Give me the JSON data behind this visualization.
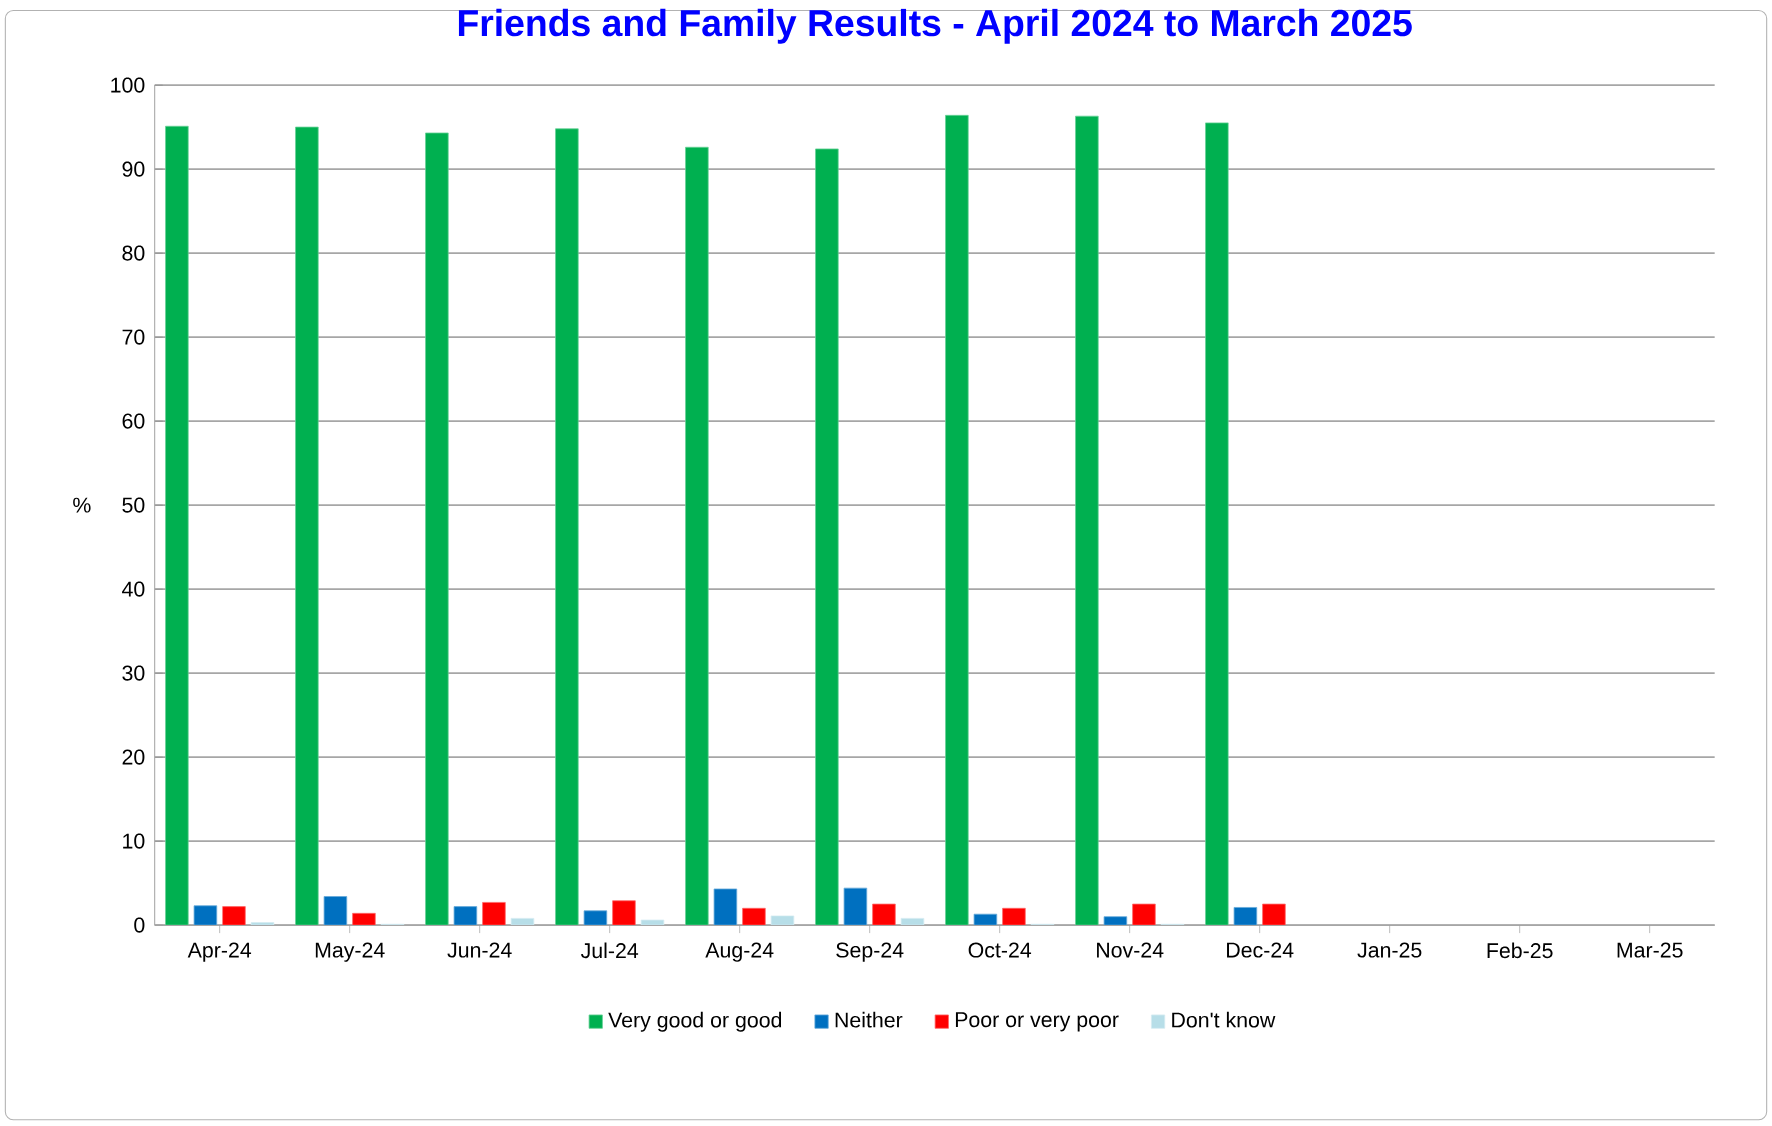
{
  "chart_data": {
    "type": "bar",
    "title": "Friends and Family Results - April 2024 to March 2025",
    "ylabel": "%",
    "categories": [
      "Apr-24",
      "May-24",
      "Jun-24",
      "Jul-24",
      "Aug-24",
      "Sep-24",
      "Oct-24",
      "Nov-24",
      "Dec-24",
      "Jan-25",
      "Feb-25",
      "Mar-25"
    ],
    "series": [
      {
        "name": "Very good or good",
        "color": "#00b050",
        "values": [
          95.1,
          95.0,
          94.3,
          94.8,
          92.6,
          92.4,
          96.4,
          96.3,
          95.5,
          null,
          null,
          null
        ]
      },
      {
        "name": "Neither",
        "color": "#0070c0",
        "values": [
          2.3,
          3.4,
          2.2,
          1.7,
          4.3,
          4.4,
          1.3,
          1.0,
          2.1,
          null,
          null,
          null
        ]
      },
      {
        "name": "Poor or very poor",
        "color": "#ff0000",
        "values": [
          2.2,
          1.4,
          2.7,
          2.9,
          2.0,
          2.5,
          2.0,
          2.5,
          2.5,
          null,
          null,
          null
        ]
      },
      {
        "name": "Don't know",
        "color": "#b7dee8",
        "values": [
          0.3,
          0.1,
          0.8,
          0.6,
          1.1,
          0.8,
          0.1,
          0.1,
          null,
          null,
          null,
          null
        ]
      }
    ],
    "ylim": [
      0,
      100
    ],
    "yticks": [
      0,
      10,
      20,
      30,
      40,
      50,
      60,
      70,
      80,
      90,
      100
    ],
    "grid": "y",
    "legend": "bottom"
  }
}
